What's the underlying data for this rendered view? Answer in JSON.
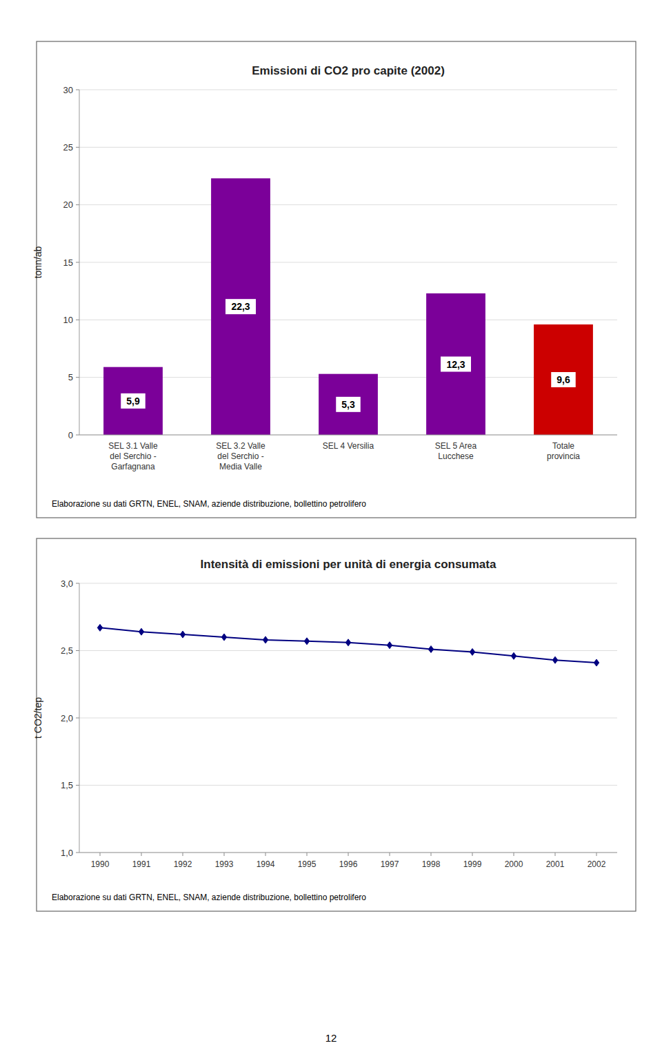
{
  "chart_data": [
    {
      "type": "bar",
      "title": "Emissioni di CO2 pro capite  (2002)",
      "categories": [
        "SEL 3.1 Valle\ndel Serchio -\nGarfagnana",
        "SEL 3.2 Valle\ndel Serchio -\nMedia Valle",
        "SEL 4 Versilia",
        "SEL 5 Area\nLucchese",
        "Totale\nprovincia"
      ],
      "values": [
        5.9,
        22.3,
        5.3,
        12.3,
        9.6
      ],
      "value_labels": [
        "5,9",
        "22,3",
        "5,3",
        "12,3",
        "9,6"
      ],
      "data_labels": true,
      "colors": [
        "#7b0099",
        "#7b0099",
        "#7b0099",
        "#7b0099",
        "#cc0000"
      ],
      "y_label": "tonn/ab",
      "ylim": [
        0,
        30
      ],
      "yticks": [
        0,
        5,
        10,
        15,
        20,
        25,
        30
      ],
      "grid": true,
      "annotations": [
        "Elaborazione su dati GRTN, ENEL, SNAM, aziende distribuzione, bollettino petrolifero"
      ]
    },
    {
      "type": "line",
      "title": "Intensità di emissioni per unità di energia consumata",
      "x": [
        1990,
        1991,
        1992,
        1993,
        1994,
        1995,
        1996,
        1997,
        1998,
        1999,
        2000,
        2001,
        2002
      ],
      "values": [
        2.67,
        2.64,
        2.62,
        2.6,
        2.58,
        2.57,
        2.56,
        2.54,
        2.51,
        2.49,
        2.46,
        2.43,
        2.41
      ],
      "color": "#000080",
      "marker": "diamond",
      "line_style": "solid",
      "y_label": "t CO2/tep",
      "xlim": [
        1989.5,
        2002.5
      ],
      "xticks": [
        1990,
        1991,
        1992,
        1993,
        1994,
        1995,
        1996,
        1997,
        1998,
        1999,
        2000,
        2001,
        2002
      ],
      "ylim": [
        1.0,
        3.0
      ],
      "yticks": [
        {
          "value": 1.0,
          "label": "1,0"
        },
        {
          "value": 1.5,
          "label": "1,5"
        },
        {
          "value": 2.0,
          "label": "2,0"
        },
        {
          "value": 2.5,
          "label": "2,5"
        },
        {
          "value": 3.0,
          "label": "3,0"
        }
      ],
      "grid": true,
      "annotations": [
        "Elaborazione su dati GRTN, ENEL, SNAM, aziende distribuzione, bollettino petrolifero"
      ]
    }
  ],
  "page_number": "12"
}
